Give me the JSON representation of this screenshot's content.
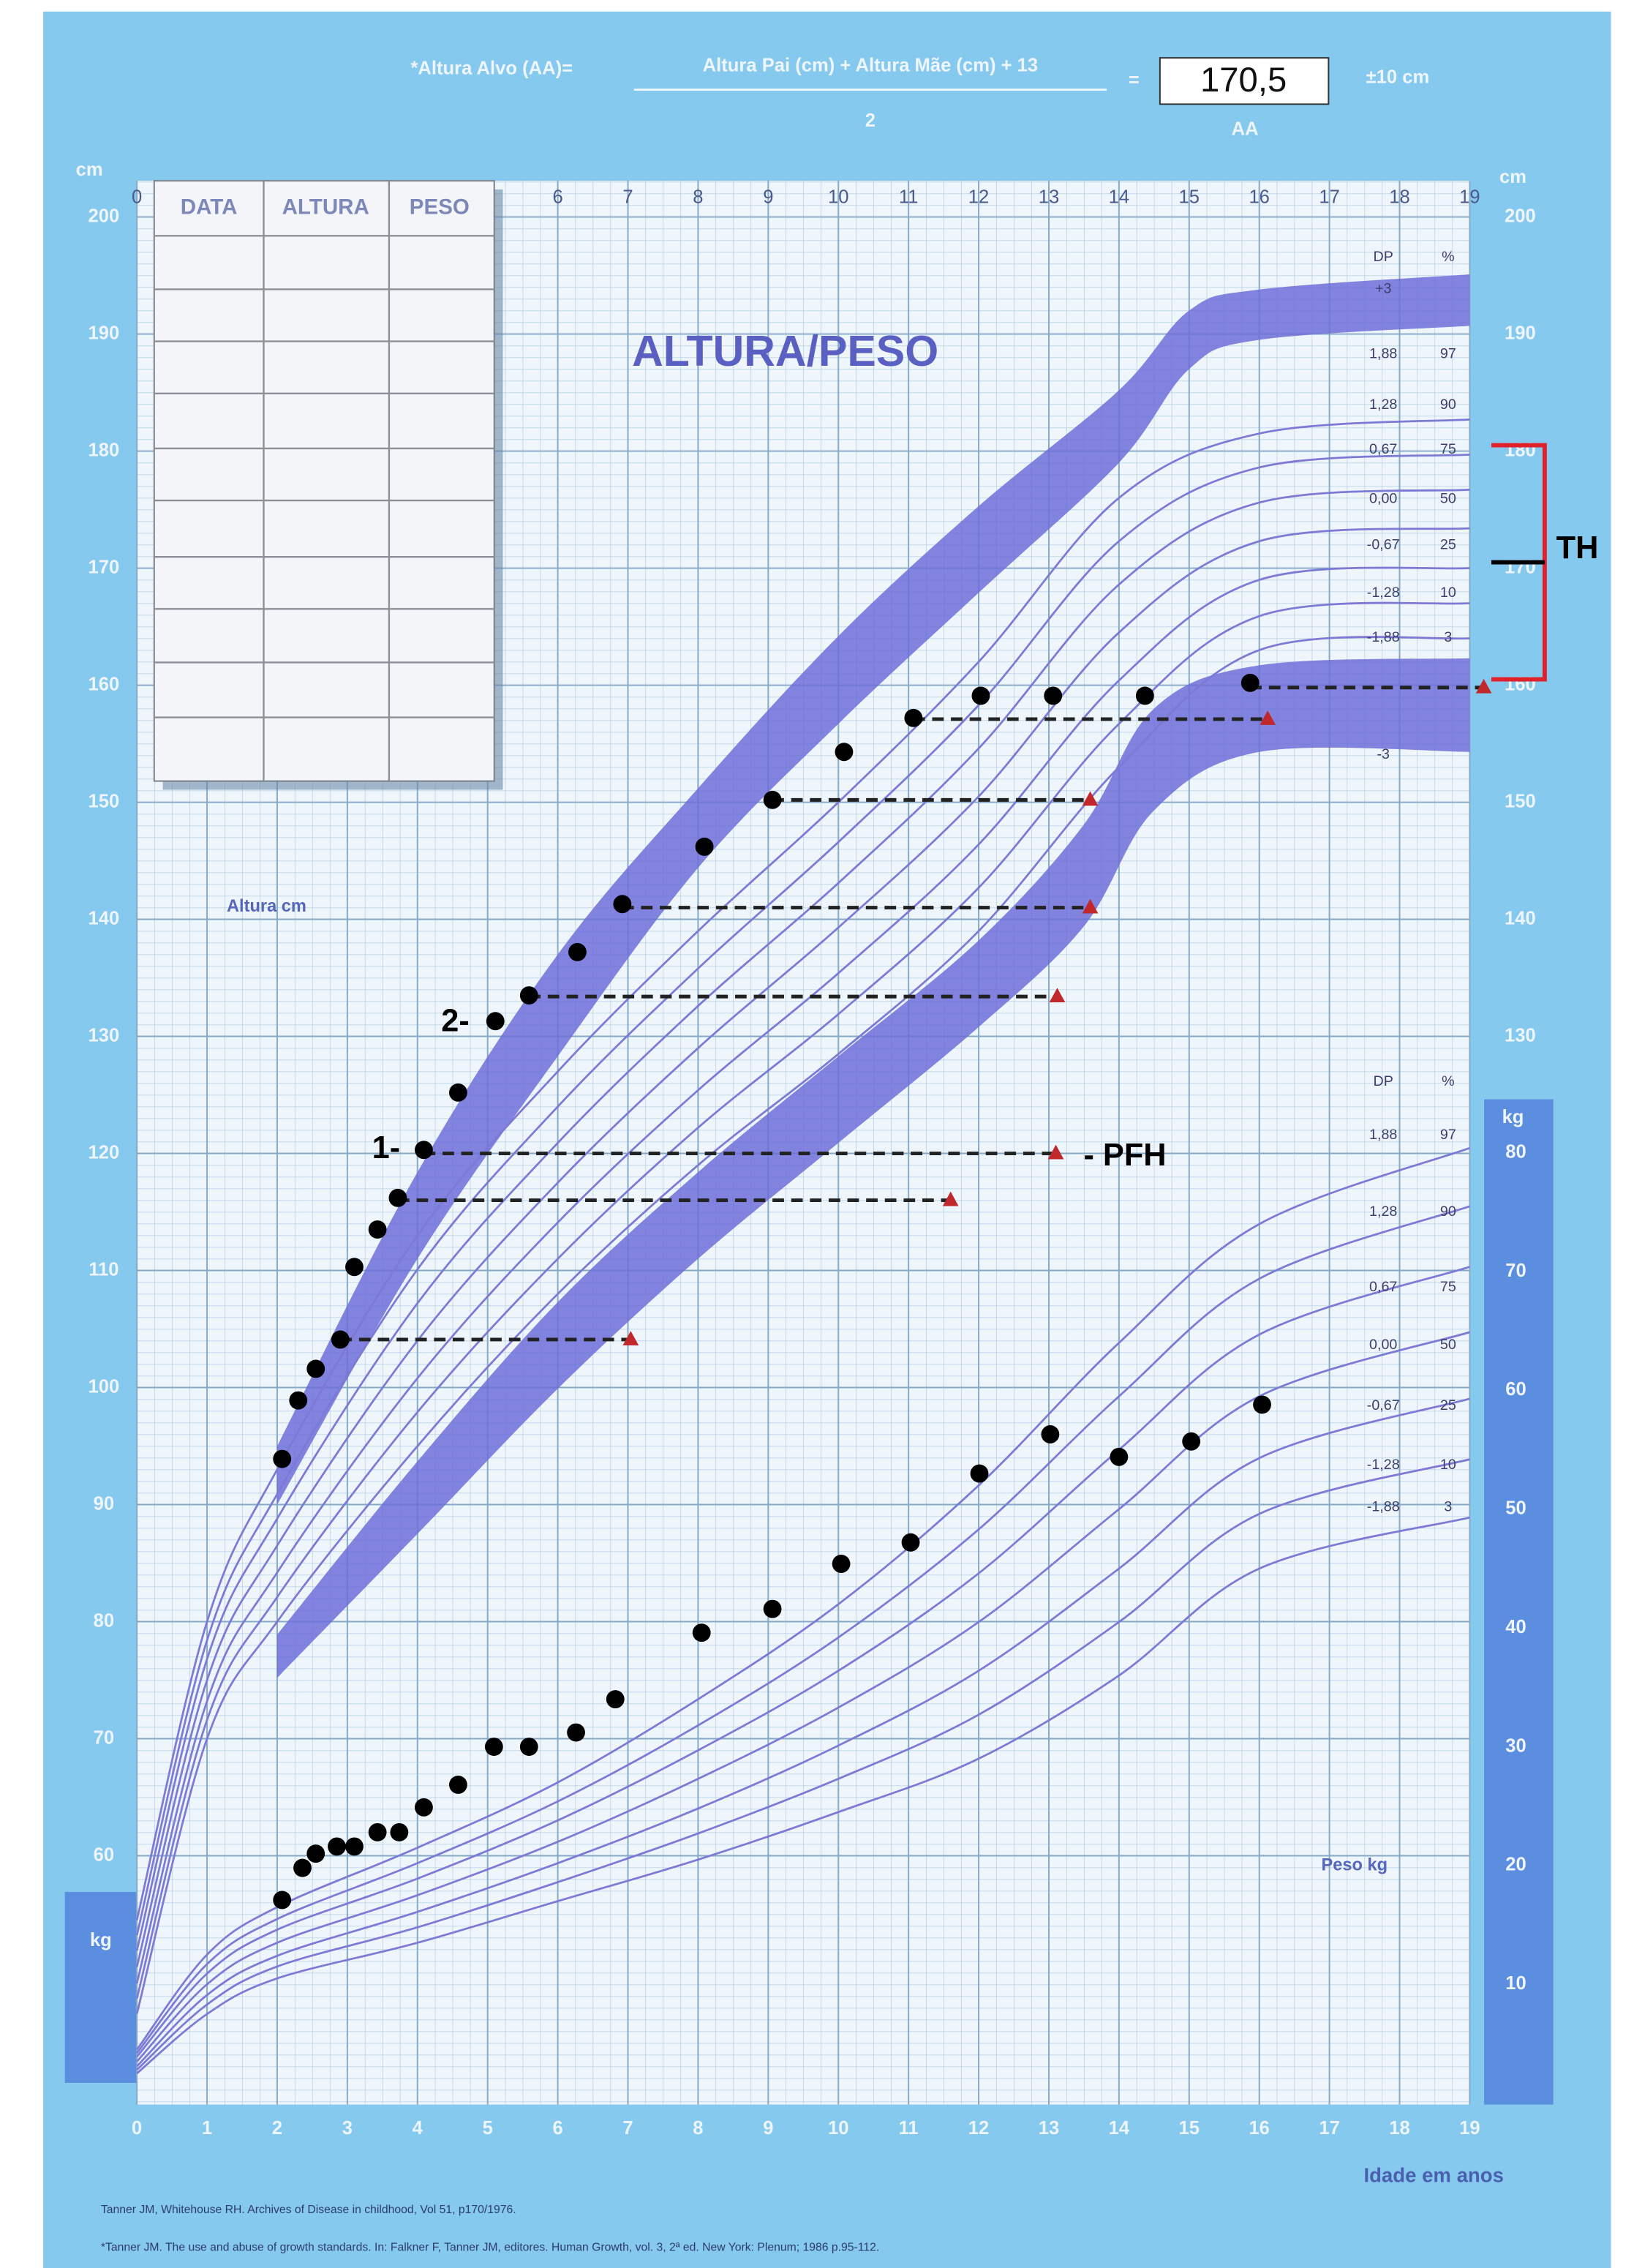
{
  "chart_data": {
    "type": "scatter",
    "title": "ALTURA/PESO",
    "formula": {
      "lhs": "*Altura Alvo (AA)=",
      "numerator": "Altura Pai (cm) + Altura Mãe (cm) + 13",
      "denominator": "2",
      "equals": "=",
      "result": "170,5",
      "result_label": "AA",
      "tolerance": "±10 cm"
    },
    "table_headers": [
      "DATA",
      "ALTURA",
      "PESO"
    ],
    "x_label": "Idade em anos",
    "y_label": "Altura cm",
    "y2_label": "Peso kg",
    "y_unit": "cm",
    "y2_unit": "kg",
    "xlim": [
      0,
      19
    ],
    "xticks": [
      0,
      1,
      2,
      3,
      4,
      5,
      6,
      7,
      8,
      9,
      10,
      11,
      12,
      13,
      14,
      15,
      16,
      17,
      18,
      19
    ],
    "ylim": [
      60,
      200
    ],
    "yticks": [
      60,
      70,
      80,
      90,
      100,
      110,
      120,
      130,
      140,
      150,
      160,
      170,
      180,
      190,
      200
    ],
    "right_yticks": [
      130,
      140,
      150,
      160,
      170,
      180,
      190,
      200
    ],
    "y2lim": [
      0,
      80
    ],
    "y2ticks": [
      10,
      20,
      30,
      40,
      50,
      60,
      70,
      80
    ],
    "grid": true,
    "series": [
      {
        "x": [
          2.07,
          2.3,
          2.55,
          2.9,
          3.1,
          3.43,
          3.72,
          4.09,
          4.58,
          5.11,
          5.59,
          6.28,
          6.92,
          8.09,
          9.06,
          10.08,
          11.07,
          12.03,
          13.06,
          14.37,
          15.87
        ],
        "values": [
          93.9,
          98.9,
          101.6,
          104.1,
          110.3,
          113.5,
          116.2,
          120.3,
          125.2,
          131.3,
          133.5,
          137.2,
          141.3,
          146.2,
          150.2,
          154.3,
          157.2,
          159.1,
          159.1,
          159.1,
          160.2
        ],
        "color": "#000000"
      },
      {
        "x": [
          2.07,
          2.36,
          2.55,
          2.85,
          3.1,
          3.43,
          3.74,
          4.09,
          4.58,
          5.09,
          5.59,
          6.26,
          6.82,
          8.05,
          9.06,
          10.04,
          11.03,
          12.01,
          13.02,
          14.0,
          15.03,
          16.04
        ],
        "values": [
          17.1,
          19.8,
          21.0,
          21.6,
          21.6,
          22.8,
          22.8,
          24.9,
          26.8,
          30.0,
          30.0,
          31.2,
          34.0,
          39.6,
          41.6,
          45.4,
          47.2,
          53.0,
          56.3,
          54.4,
          55.7,
          58.8
        ],
        "color": "#000000",
        "axis": "y2"
      }
    ],
    "projections": {
      "x_start": [
        2.9,
        3.72,
        4.09,
        5.59,
        6.92,
        9.06,
        11.07,
        15.87
      ],
      "x": [
        7.04,
        11.6,
        13.1,
        13.12,
        13.59,
        13.59,
        16.12,
        19.2
      ],
      "values": [
        104.1,
        116.0,
        120.0,
        133.4,
        141.0,
        150.2,
        157.1,
        159.8
      ],
      "color": "#c0282c"
    },
    "height_bands": [
      {
        "x": [
          2,
          4,
          6,
          8,
          10,
          12,
          14,
          15,
          16,
          19
        ],
        "top": [
          95,
          118.4,
          137,
          151.2,
          164.2,
          175.3,
          185.2,
          192,
          193.8,
          195.1
        ],
        "bottom": [
          90,
          111,
          128.3,
          144.4,
          156.7,
          167.9,
          179,
          187,
          189.5,
          190.7
        ]
      },
      {
        "x": [
          2,
          4,
          6,
          8,
          10,
          12,
          13.5,
          14.5,
          16,
          19
        ],
        "top": [
          78.9,
          93.7,
          107.3,
          118.4,
          128.3,
          138.2,
          148.1,
          158,
          161.7,
          162.3
        ],
        "bottom": [
          75.2,
          87.5,
          99.9,
          111,
          120.9,
          130.8,
          139.4,
          149.3,
          154.3,
          154.3
        ]
      }
    ],
    "band_color": "#6d6fd8",
    "curve_color": "#7d7ad6",
    "height_curves": {
      "x": [
        0,
        1,
        2,
        4,
        6,
        8,
        10,
        12,
        14,
        16,
        19
      ],
      "lines": [
        {
          "values": [
            54.5,
            80,
            93,
            113,
            127,
            139,
            150,
            162,
            176,
            181.5,
            182.7
          ]
        },
        {
          "values": [
            53.2,
            78.4,
            90.9,
            110.1,
            124.0,
            135.8,
            146.6,
            158.3,
            172.3,
            178.6,
            179.7
          ]
        },
        {
          "values": [
            51.9,
            76.8,
            88.8,
            107.2,
            120.9,
            132.6,
            143.1,
            154.6,
            168.6,
            175.6,
            176.7
          ]
        },
        {
          "values": [
            50.5,
            75,
            86.5,
            104,
            117.5,
            129,
            139.3,
            150.5,
            164.5,
            172.3,
            173.4
          ]
        },
        {
          "values": [
            49.1,
            73.2,
            84.2,
            100.8,
            114.1,
            125.4,
            135.4,
            146.4,
            160.4,
            169.0,
            170.0
          ]
        },
        {
          "values": [
            47.8,
            71.6,
            82.1,
            97.9,
            111.0,
            122.2,
            131.9,
            142.7,
            156.7,
            165.9,
            167.0
          ]
        },
        {
          "values": [
            46.5,
            70,
            80,
            95,
            108,
            119,
            128.5,
            139,
            153,
            163,
            164
          ]
        }
      ]
    },
    "weight_curves": {
      "x": [
        0,
        1,
        2,
        4,
        6,
        8,
        10,
        12,
        14,
        16,
        19
      ],
      "lines": [
        {
          "values": [
            4.5,
            12.5,
            16.5,
            21.5,
            27,
            34,
            42,
            52,
            64,
            74,
            80.4
          ]
        },
        {
          "values": [
            4.2,
            11.7,
            15.5,
            20.2,
            25.4,
            31.8,
            39.2,
            48.3,
            59.5,
            69.4,
            75.5
          ]
        },
        {
          "values": [
            3.9,
            10.9,
            14.6,
            18.9,
            23.8,
            29.7,
            36.4,
            44.6,
            55.0,
            64.7,
            70.4
          ]
        },
        {
          "values": [
            3.5,
            10,
            13.5,
            17.5,
            22,
            27.3,
            33.3,
            40.5,
            50,
            59.5,
            64.9
          ]
        },
        {
          "values": [
            3.1,
            9.1,
            12.4,
            16.1,
            20.2,
            24.8,
            30.1,
            36.4,
            45.0,
            54.3,
            59.3
          ]
        },
        {
          "values": [
            2.8,
            8.3,
            11.5,
            14.8,
            18.6,
            22.7,
            27.3,
            32.7,
            40.5,
            49.6,
            54.2
          ]
        },
        {
          "values": [
            2.5,
            7.5,
            10.5,
            13.5,
            17,
            20.5,
            24.5,
            29,
            36,
            45,
            49.3
          ]
        }
      ]
    },
    "height_table": {
      "header": [
        "DP",
        "%"
      ],
      "rows": [
        [
          "+3"
        ],
        [
          "1,88",
          "97"
        ],
        [
          "1,28",
          "90"
        ],
        [
          "0,67",
          "75"
        ],
        [
          "0,00",
          "50"
        ],
        [
          "-0,67",
          "25"
        ],
        [
          "-1,28",
          "10"
        ],
        [
          "-1,88",
          "3"
        ],
        [
          "-3"
        ]
      ]
    },
    "weight_table": {
      "header": [
        "DP",
        "%"
      ],
      "rows": [
        [
          "1,88",
          "97"
        ],
        [
          "1,28",
          "90"
        ],
        [
          "0,67",
          "75"
        ],
        [
          "0,00",
          "50"
        ],
        [
          "-0,67",
          "25"
        ],
        [
          "-1,28",
          "10"
        ],
        [
          "-1,88",
          "3"
        ]
      ]
    },
    "target": {
      "value": 170.5,
      "range": [
        160.5,
        180.5
      ]
    },
    "annotations": [
      "TH",
      "1-",
      "2-",
      "- PFH"
    ],
    "references": [
      "Tanner JM, Whitehouse RH. Archives of Disease in childhood, Vol 51, p170/1976.",
      "*Tanner JM. The use and abuse of growth standards. In: Falkner F, Tanner JM, editores. Human Growth, vol. 3, 2ª ed. New York: Plenum; 1986 p.95-112."
    ]
  }
}
